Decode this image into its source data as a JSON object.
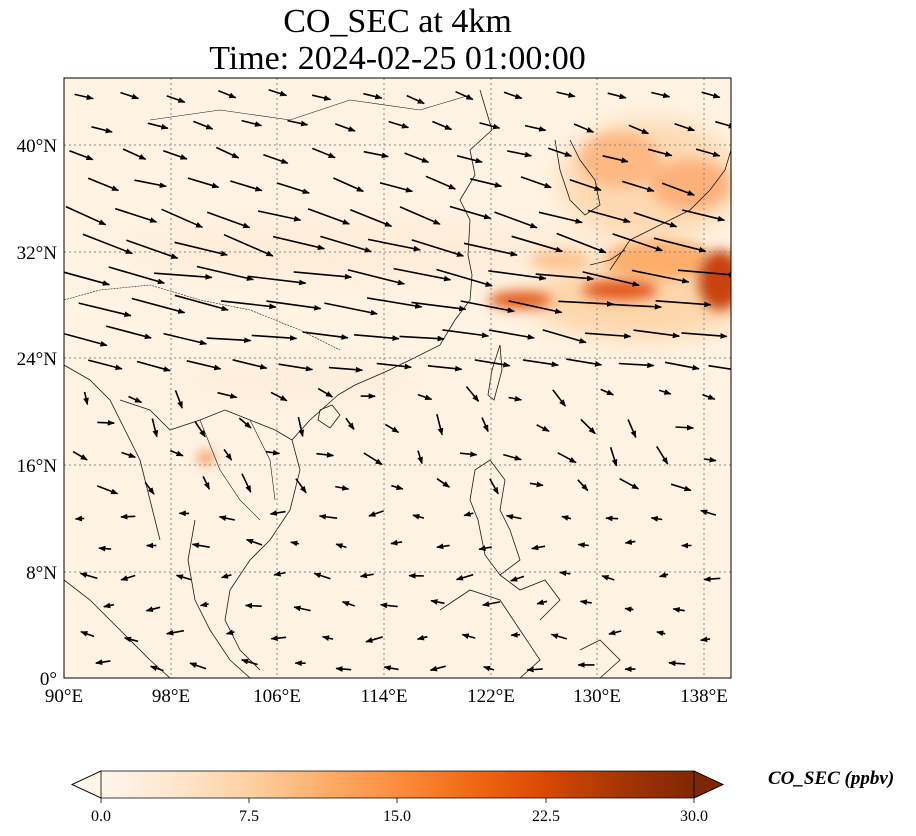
{
  "title_line1": "CO_SEC at 4km",
  "title_line2": "Time: 2024-02-25 01:00:00",
  "x_ticks": [
    "90°E",
    "98°E",
    "106°E",
    "114°E",
    "122°E",
    "130°E",
    "138°E"
  ],
  "y_ticks": [
    "40°N",
    "32°N",
    "24°N",
    "16°N",
    "8°N",
    "0°"
  ],
  "colorbar": {
    "label": "CO_SEC (ppbv)",
    "min": 0.0,
    "max": 30.0,
    "ticks": [
      "0.0",
      "7.5",
      "15.0",
      "22.5",
      "30.0"
    ],
    "colors": [
      "#fff5eb",
      "#fee6ce",
      "#fdd0a2",
      "#fdae6b",
      "#fd8d3c",
      "#f16913",
      "#d94801",
      "#a63603",
      "#7f2704"
    ],
    "extend": "both"
  },
  "map_extent": {
    "lon": [
      90,
      140
    ],
    "lat": [
      0,
      45
    ]
  },
  "gridlines": true,
  "concentration_hotspots": [
    {
      "lon": 101,
      "lat": 16.5,
      "value": 12
    },
    {
      "lon": 124.5,
      "lat": 28.5,
      "value": 22
    },
    {
      "lon": 132,
      "lat": 29,
      "value": 20
    },
    {
      "lon": 139,
      "lat": 30,
      "value": 24
    },
    {
      "lon": 134,
      "lat": 38,
      "value": 11
    },
    {
      "lon": 136,
      "lat": 33,
      "value": 10
    }
  ],
  "wind_field": "westerly jet 24–36°N, weaker easterly flow south of 20°N"
}
